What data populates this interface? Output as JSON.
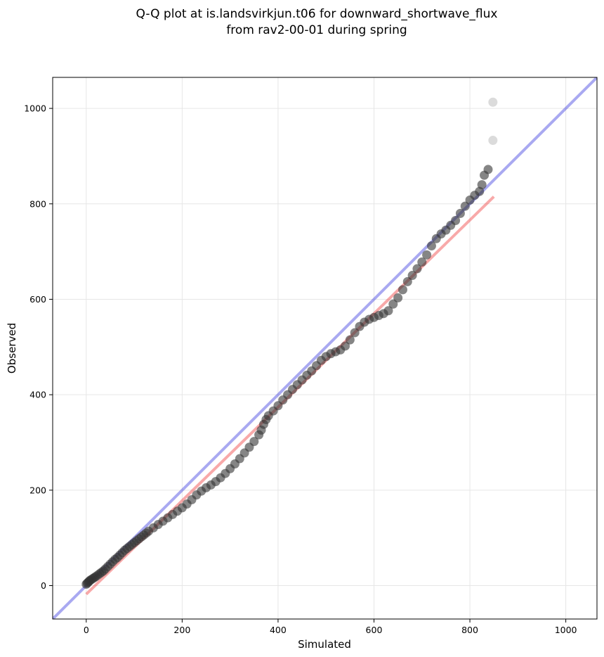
{
  "chart_data": {
    "type": "scatter",
    "title": [
      "Q-Q plot at is.landsvirkjun.t06 for downward_shortwave_flux",
      "from rav2-00-01 during spring"
    ],
    "xlabel": "Simulated",
    "ylabel": "Observed",
    "xlim": [
      -70,
      1065
    ],
    "ylim": [
      -70,
      1065
    ],
    "xticks": [
      0,
      200,
      400,
      600,
      800,
      1000
    ],
    "yticks": [
      0,
      200,
      400,
      600,
      800,
      1000
    ],
    "grid": true,
    "reference_line": {
      "name": "1:1",
      "color": "#3333dd",
      "from": [
        -70,
        -70
      ],
      "to": [
        1065,
        1065
      ]
    },
    "fit_line": {
      "color": "#ee3333",
      "from": [
        0,
        -18
      ],
      "to": [
        850,
        815
      ]
    },
    "points": {
      "color": "#333333",
      "quantiles": [
        [
          0,
          3
        ],
        [
          2,
          5
        ],
        [
          4,
          7
        ],
        [
          6,
          9
        ],
        [
          8,
          11
        ],
        [
          11,
          13
        ],
        [
          14,
          15
        ],
        [
          17,
          17
        ],
        [
          20,
          19
        ],
        [
          24,
          22
        ],
        [
          28,
          25
        ],
        [
          32,
          28
        ],
        [
          36,
          31
        ],
        [
          40,
          35
        ],
        [
          45,
          40
        ],
        [
          50,
          45
        ],
        [
          55,
          50
        ],
        [
          60,
          55
        ],
        [
          65,
          59
        ],
        [
          70,
          64
        ],
        [
          75,
          69
        ],
        [
          80,
          74
        ],
        [
          85,
          78
        ],
        [
          90,
          82
        ],
        [
          95,
          86
        ],
        [
          100,
          90
        ],
        [
          105,
          94
        ],
        [
          110,
          98
        ],
        [
          115,
          102
        ],
        [
          120,
          106
        ],
        [
          125,
          110
        ],
        [
          130,
          114
        ],
        [
          140,
          121
        ],
        [
          150,
          128
        ],
        [
          160,
          135
        ],
        [
          170,
          142
        ],
        [
          180,
          149
        ],
        [
          190,
          156
        ],
        [
          200,
          163
        ],
        [
          210,
          171
        ],
        [
          220,
          180
        ],
        [
          230,
          190
        ],
        [
          240,
          198
        ],
        [
          250,
          205
        ],
        [
          260,
          211
        ],
        [
          270,
          218
        ],
        [
          280,
          226
        ],
        [
          290,
          235
        ],
        [
          300,
          245
        ],
        [
          310,
          255
        ],
        [
          320,
          266
        ],
        [
          330,
          278
        ],
        [
          340,
          290
        ],
        [
          350,
          302
        ],
        [
          360,
          316
        ],
        [
          365,
          326
        ],
        [
          370,
          338
        ],
        [
          375,
          348
        ],
        [
          380,
          356
        ],
        [
          390,
          366
        ],
        [
          400,
          377
        ],
        [
          410,
          389
        ],
        [
          420,
          400
        ],
        [
          430,
          411
        ],
        [
          440,
          421
        ],
        [
          450,
          431
        ],
        [
          460,
          441
        ],
        [
          470,
          450
        ],
        [
          480,
          461
        ],
        [
          490,
          472
        ],
        [
          500,
          480
        ],
        [
          510,
          486
        ],
        [
          520,
          490
        ],
        [
          530,
          494
        ],
        [
          540,
          502
        ],
        [
          550,
          515
        ],
        [
          560,
          530
        ],
        [
          570,
          543
        ],
        [
          580,
          552
        ],
        [
          590,
          558
        ],
        [
          600,
          562
        ],
        [
          610,
          566
        ],
        [
          620,
          570
        ],
        [
          630,
          576
        ],
        [
          640,
          590
        ],
        [
          650,
          603
        ],
        [
          660,
          620
        ],
        [
          670,
          637
        ],
        [
          680,
          650
        ],
        [
          690,
          664
        ],
        [
          700,
          678
        ],
        [
          710,
          693
        ],
        [
          720,
          712
        ],
        [
          730,
          727
        ],
        [
          740,
          737
        ],
        [
          750,
          745
        ],
        [
          760,
          755
        ],
        [
          770,
          765
        ],
        [
          780,
          780
        ],
        [
          790,
          795
        ],
        [
          800,
          808
        ],
        [
          810,
          818
        ],
        [
          820,
          826
        ],
        [
          825,
          840
        ],
        [
          830,
          860
        ],
        [
          838,
          872
        ],
        [
          848,
          933
        ],
        [
          848,
          1013
        ]
      ]
    }
  }
}
